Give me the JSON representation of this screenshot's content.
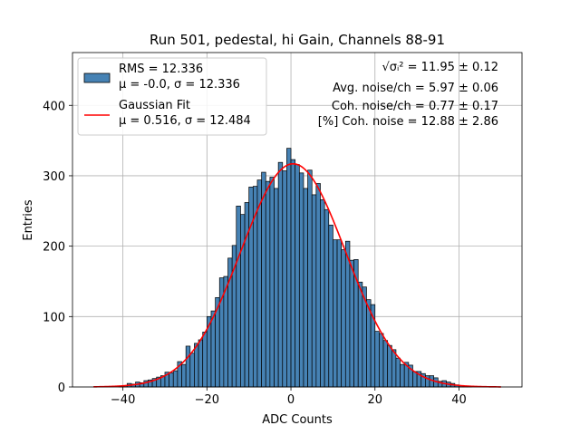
{
  "chart_data": {
    "type": "bar",
    "title": "Run 501, pedestal, hi Gain, Channels 88-91",
    "xlabel": "ADC Counts",
    "ylabel": "Entries",
    "xlim": [
      -52,
      55
    ],
    "ylim": [
      0,
      475
    ],
    "grid": true,
    "x_ticks": [
      -40,
      -20,
      0,
      20,
      40
    ],
    "x_tick_labels": [
      "−40",
      "−20",
      "0",
      "20",
      "40"
    ],
    "y_ticks": [
      0,
      100,
      200,
      300,
      400
    ],
    "y_tick_labels": [
      "0",
      "100",
      "200",
      "300",
      "400"
    ],
    "histogram": {
      "name": "RMS = 12.336",
      "stats_label": "μ = -0.0, σ = 12.336",
      "color": "#4682b4",
      "bins": [
        -47,
        -46,
        -45,
        -44,
        -43,
        -42,
        -41,
        -40,
        -39,
        -38,
        -37,
        -36,
        -35,
        -34,
        -33,
        -32,
        -31,
        -30,
        -29,
        -28,
        -27,
        -26,
        -25,
        -24,
        -23,
        -22,
        -21,
        -20,
        -19,
        -18,
        -17,
        -16,
        -15,
        -14,
        -13,
        -12,
        -11,
        -10,
        -9,
        -8,
        -7,
        -6,
        -5,
        -4,
        -3,
        -2,
        -1,
        0,
        1,
        2,
        3,
        4,
        5,
        6,
        7,
        8,
        9,
        10,
        11,
        12,
        13,
        14,
        15,
        16,
        17,
        18,
        19,
        20,
        21,
        22,
        23,
        24,
        25,
        26,
        27,
        28,
        29,
        30,
        31,
        32,
        33,
        34,
        35,
        36,
        37,
        38,
        39,
        40,
        41,
        42,
        43,
        44,
        45,
        46,
        47,
        48,
        49
      ],
      "values": [
        0,
        0,
        0,
        0,
        0,
        0,
        1,
        2,
        5,
        4,
        7,
        6,
        9,
        10,
        12,
        14,
        16,
        21,
        20,
        23,
        36,
        32,
        58,
        48,
        62,
        67,
        78,
        100,
        108,
        127,
        155,
        157,
        183,
        201,
        257,
        245,
        262,
        284,
        285,
        294,
        305,
        292,
        298,
        282,
        319,
        307,
        339,
        323,
        316,
        304,
        282,
        308,
        273,
        289,
        266,
        252,
        230,
        209,
        209,
        195,
        207,
        180,
        181,
        149,
        142,
        124,
        117,
        79,
        76,
        66,
        59,
        53,
        41,
        32,
        35,
        31,
        22,
        22,
        19,
        16,
        16,
        13,
        8,
        9,
        7,
        5,
        3,
        2,
        1,
        1,
        0,
        0,
        0,
        0,
        0,
        0,
        0
      ]
    },
    "series": [
      {
        "name": "Gaussian Fit",
        "stats_label": "μ = 0.516, σ = 12.484",
        "type": "line",
        "color": "#ff0000",
        "mu": 0.516,
        "sigma": 12.484,
        "amplitude": 317,
        "x_range": [
          -47,
          50
        ]
      }
    ],
    "legend_position": "top-left",
    "annotations": [
      {
        "symbol": "√σᵢ²",
        "text": " = 11.95 ± 0.12"
      },
      {
        "text": "Avg. noise/ch = 5.97 ± 0.06"
      },
      {
        "text": "Coh. noise/ch = 0.77 ± 0.17"
      },
      {
        "text": "[%] Coh. noise = 12.88 ± 2.86"
      }
    ]
  }
}
